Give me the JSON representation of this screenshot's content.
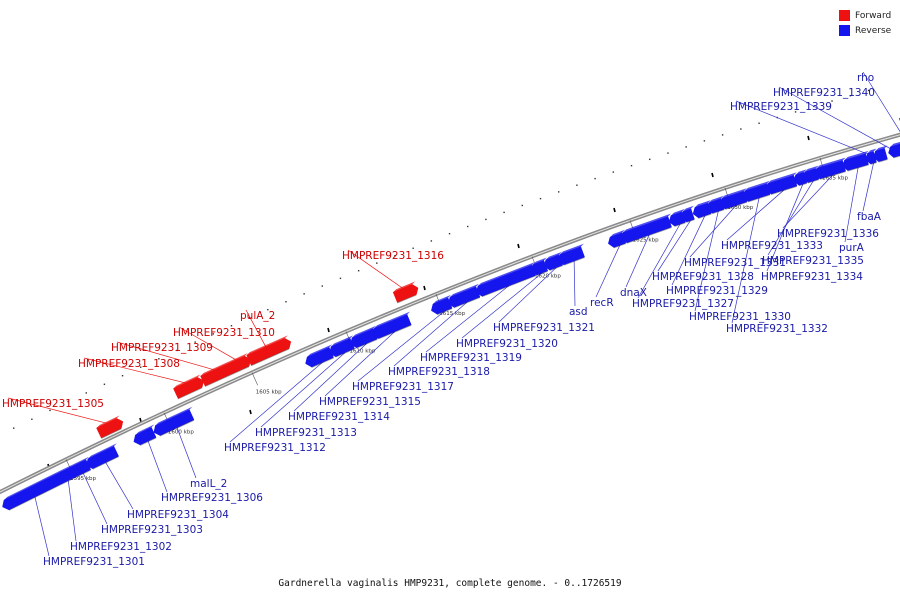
{
  "legend": {
    "forward": {
      "label": "Forward",
      "color": "#ee1111"
    },
    "reverse": {
      "label": "Reverse",
      "color": "#1515ee"
    }
  },
  "caption": "Gardnerella vaginalis HMP9231, complete genome. - 0..1726519",
  "ticks": [
    {
      "kbp": 1595,
      "label": "1595 kbp"
    },
    {
      "kbp": 1600,
      "label": "1600 kbp"
    },
    {
      "kbp": 1605,
      "label": "1605 kbp"
    },
    {
      "kbp": 1610,
      "label": "1610 kbp"
    },
    {
      "kbp": 1615,
      "label": "1615 kbp"
    },
    {
      "kbp": 1620,
      "label": "1620 kbp"
    },
    {
      "kbp": 1625,
      "label": "1625 kbp"
    },
    {
      "kbp": 1630,
      "label": "1630 kbp"
    },
    {
      "kbp": 1635,
      "label": "1635 kbp"
    }
  ],
  "genes": [
    {
      "name": "HMPREF9231_1301",
      "strand": "reverse"
    },
    {
      "name": "HMPREF9231_1302",
      "strand": "reverse"
    },
    {
      "name": "HMPREF9231_1303",
      "strand": "reverse"
    },
    {
      "name": "HMPREF9231_1304",
      "strand": "reverse"
    },
    {
      "name": "HMPREF9231_1305",
      "strand": "forward"
    },
    {
      "name": "HMPREF9231_1306",
      "strand": "reverse"
    },
    {
      "name": "malL_2",
      "strand": "reverse"
    },
    {
      "name": "HMPREF9231_1308",
      "strand": "forward"
    },
    {
      "name": "HMPREF9231_1309",
      "strand": "forward"
    },
    {
      "name": "HMPREF9231_1310",
      "strand": "forward"
    },
    {
      "name": "pulA_2",
      "strand": "forward"
    },
    {
      "name": "HMPREF9231_1312",
      "strand": "reverse"
    },
    {
      "name": "HMPREF9231_1313",
      "strand": "reverse"
    },
    {
      "name": "HMPREF9231_1314",
      "strand": "reverse"
    },
    {
      "name": "HMPREF9231_1315",
      "strand": "reverse"
    },
    {
      "name": "HMPREF9231_1316",
      "strand": "forward"
    },
    {
      "name": "HMPREF9231_1317",
      "strand": "reverse"
    },
    {
      "name": "HMPREF9231_1318",
      "strand": "reverse"
    },
    {
      "name": "HMPREF9231_1319",
      "strand": "reverse"
    },
    {
      "name": "HMPREF9231_1320",
      "strand": "reverse"
    },
    {
      "name": "HMPREF9231_1321",
      "strand": "reverse"
    },
    {
      "name": "asd",
      "strand": "reverse"
    },
    {
      "name": "recR",
      "strand": "reverse"
    },
    {
      "name": "dnaX",
      "strand": "reverse"
    },
    {
      "name": "HMPREF9231_1327",
      "strand": "reverse"
    },
    {
      "name": "HMPREF9231_1328",
      "strand": "reverse"
    },
    {
      "name": "HMPREF9231_1329",
      "strand": "reverse"
    },
    {
      "name": "HMPREF9231_1330",
      "strand": "reverse"
    },
    {
      "name": "HMPREF9231_1331",
      "strand": "reverse"
    },
    {
      "name": "HMPREF9231_1332",
      "strand": "reverse"
    },
    {
      "name": "HMPREF9231_1333",
      "strand": "reverse"
    },
    {
      "name": "HMPREF9231_1334",
      "strand": "reverse"
    },
    {
      "name": "HMPREF9231_1335",
      "strand": "reverse"
    },
    {
      "name": "HMPREF9231_1336",
      "strand": "reverse"
    },
    {
      "name": "purA",
      "strand": "reverse"
    },
    {
      "name": "fbaA",
      "strand": "reverse"
    },
    {
      "name": "HMPREF9231_1339",
      "strand": "reverse"
    },
    {
      "name": "HMPREF9231_1340",
      "strand": "reverse"
    },
    {
      "name": "rho",
      "strand": "reverse"
    }
  ]
}
